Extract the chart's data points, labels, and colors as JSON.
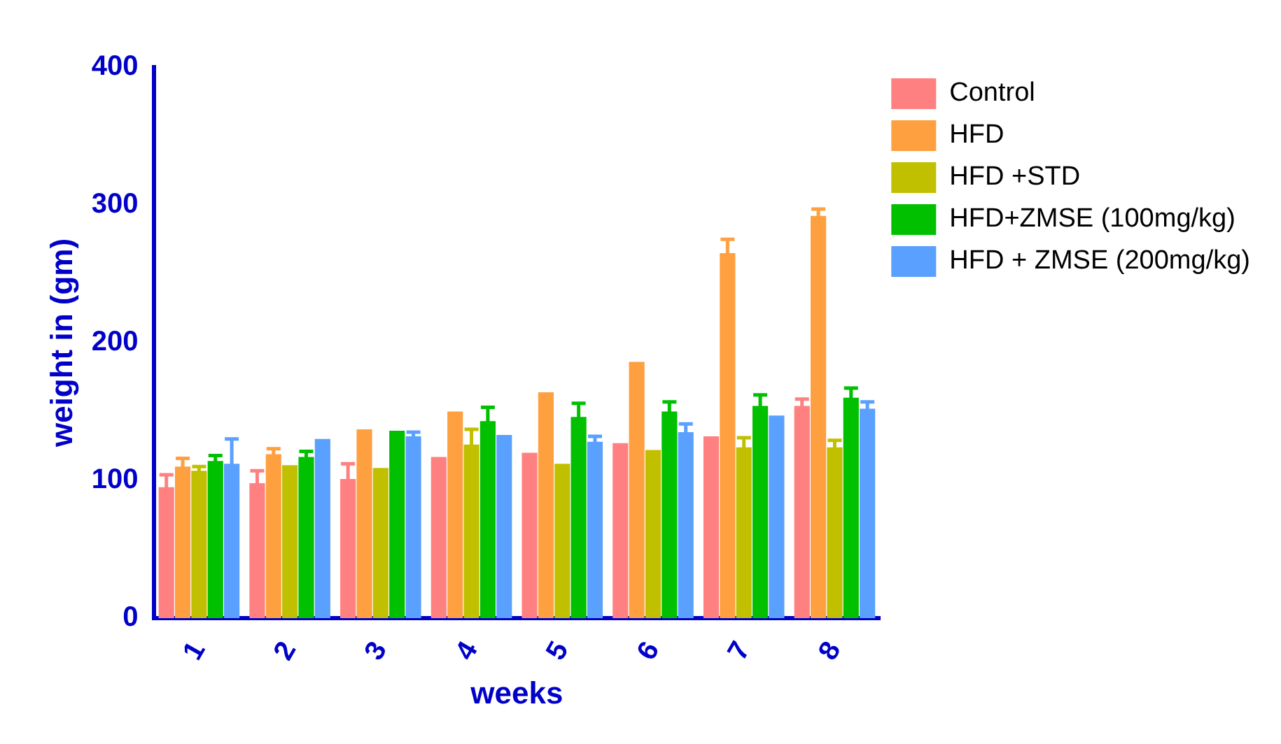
{
  "chart_data": {
    "type": "bar",
    "xlabel": "weeks",
    "ylabel": "weight in (gm)",
    "categories": [
      "1",
      "2",
      "3",
      "4",
      "5",
      "6",
      "7",
      "8"
    ],
    "series": [
      {
        "name": "Control",
        "color": "#ff8080",
        "values": [
          95,
          98,
          101,
          117,
          120,
          127,
          132,
          154
        ],
        "errors": [
          9,
          9,
          11,
          null,
          null,
          null,
          null,
          5
        ]
      },
      {
        "name": "HFD",
        "color": "#ffa040",
        "values": [
          110,
          119,
          137,
          150,
          164,
          186,
          265,
          292
        ],
        "errors": [
          6,
          4,
          null,
          null,
          null,
          null,
          10,
          5
        ]
      },
      {
        "name": "HFD +STD",
        "color": "#c0c000",
        "values": [
          107,
          111,
          109,
          126,
          112,
          122,
          124,
          124
        ],
        "errors": [
          3,
          null,
          null,
          11,
          null,
          null,
          7,
          5
        ]
      },
      {
        "name": "HFD+ZMSE (100mg/kg)",
        "color": "#00c000",
        "values": [
          114,
          117,
          136,
          143,
          146,
          150,
          154,
          160
        ],
        "errors": [
          4,
          4,
          null,
          10,
          10,
          7,
          8,
          7
        ]
      },
      {
        "name": "HFD + ZMSE (200mg/kg)",
        "color": "#5aa0ff",
        "values": [
          112,
          130,
          132,
          133,
          128,
          135,
          147,
          152
        ],
        "errors": [
          18,
          null,
          3,
          null,
          4,
          6,
          null,
          5
        ]
      }
    ],
    "ylim": [
      0,
      400
    ],
    "yticks": [
      0,
      100,
      200,
      300,
      400
    ],
    "grid": false,
    "legend": "right"
  }
}
